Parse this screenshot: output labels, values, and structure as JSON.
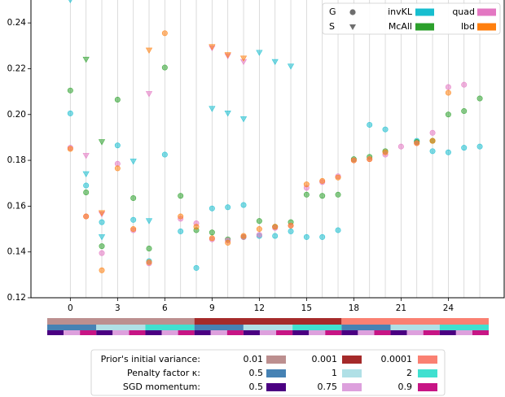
{
  "chart_data": {
    "type": "scatter",
    "title": "",
    "xlabel": "",
    "ylabel": "",
    "xlim": [
      -2.5,
      27.6
    ],
    "ylim": [
      0.12,
      0.25
    ],
    "x_ticks": [
      0,
      3,
      6,
      9,
      12,
      15,
      18,
      21,
      24
    ],
    "y_ticks": [
      0.12,
      0.14,
      0.16,
      0.18,
      0.2,
      0.22,
      0.24
    ],
    "grid": "vertical",
    "legend_position": "top-right",
    "marker_legend": [
      {
        "label": "G",
        "marker": "circle"
      },
      {
        "label": "S",
        "marker": "triangle-down"
      }
    ],
    "method_legend": [
      {
        "label": "invKL",
        "color": "#17becf"
      },
      {
        "label": "McAll",
        "color": "#2ca02c"
      },
      {
        "label": "quad",
        "color": "#e377c2"
      },
      {
        "label": "lbd",
        "color": "#ff7f0e"
      }
    ],
    "series": [
      {
        "name": "invKL",
        "marker": "G",
        "color": "#17becf",
        "points": [
          [
            0,
            0.2005
          ],
          [
            1,
            0.169
          ],
          [
            2,
            0.153
          ],
          [
            3,
            0.1865
          ],
          [
            4,
            0.154
          ],
          [
            5,
            0.136
          ],
          [
            6,
            0.1825
          ],
          [
            7,
            0.149
          ],
          [
            8,
            0.133
          ],
          [
            9,
            0.159
          ],
          [
            10,
            0.1595
          ],
          [
            11,
            0.1605
          ],
          [
            12,
            0.147
          ],
          [
            13,
            0.147
          ],
          [
            14,
            0.149
          ],
          [
            15,
            0.1465
          ],
          [
            16,
            0.1465
          ],
          [
            17,
            0.1495
          ],
          [
            19,
            0.1955
          ],
          [
            20,
            0.1935
          ],
          [
            22,
            0.1885
          ],
          [
            23,
            0.184
          ],
          [
            24,
            0.1835
          ],
          [
            25,
            0.1855
          ],
          [
            26,
            0.186
          ]
        ]
      },
      {
        "name": "McAll",
        "marker": "G",
        "color": "#2ca02c",
        "points": [
          [
            0,
            0.2105
          ],
          [
            1,
            0.166
          ],
          [
            2,
            0.1425
          ],
          [
            3,
            0.2065
          ],
          [
            4,
            0.1635
          ],
          [
            5,
            0.1415
          ],
          [
            6,
            0.2205
          ],
          [
            7,
            0.1645
          ],
          [
            8,
            0.1495
          ],
          [
            9,
            0.1485
          ],
          [
            10,
            0.1455
          ],
          [
            11,
            0.1465
          ],
          [
            12,
            0.1535
          ],
          [
            13,
            0.151
          ],
          [
            14,
            0.153
          ],
          [
            15,
            0.165
          ],
          [
            16,
            0.1645
          ],
          [
            17,
            0.165
          ],
          [
            18,
            0.1805
          ],
          [
            19,
            0.1815
          ],
          [
            20,
            0.184
          ],
          [
            22,
            0.188
          ],
          [
            23,
            0.1885
          ],
          [
            24,
            0.2
          ],
          [
            25,
            0.2015
          ],
          [
            26,
            0.207
          ]
        ]
      },
      {
        "name": "quad",
        "marker": "G",
        "color": "#e377c2",
        "points": [
          [
            0,
            0.1855
          ],
          [
            1,
            0.1555
          ],
          [
            2,
            0.1395
          ],
          [
            3,
            0.1785
          ],
          [
            4,
            0.1495
          ],
          [
            5,
            0.135
          ],
          [
            7,
            0.1545
          ],
          [
            8,
            0.1525
          ],
          [
            9,
            0.1455
          ],
          [
            10,
            0.145
          ],
          [
            11,
            0.1465
          ],
          [
            12,
            0.1475
          ],
          [
            13,
            0.1505
          ],
          [
            14,
            0.1515
          ],
          [
            15,
            0.168
          ],
          [
            16,
            0.1705
          ],
          [
            17,
            0.173
          ],
          [
            18,
            0.18
          ],
          [
            19,
            0.1805
          ],
          [
            20,
            0.1825
          ],
          [
            21,
            0.186
          ],
          [
            22,
            0.1875
          ],
          [
            23,
            0.192
          ],
          [
            24,
            0.212
          ],
          [
            25,
            0.213
          ]
        ]
      },
      {
        "name": "lbd",
        "marker": "G",
        "color": "#ff7f0e",
        "points": [
          [
            0,
            0.185
          ],
          [
            1,
            0.1555
          ],
          [
            2,
            0.132
          ],
          [
            3,
            0.1765
          ],
          [
            4,
            0.15
          ],
          [
            5,
            0.1355
          ],
          [
            6,
            0.2355
          ],
          [
            7,
            0.1555
          ],
          [
            8,
            0.151
          ],
          [
            9,
            0.146
          ],
          [
            10,
            0.144
          ],
          [
            11,
            0.147
          ],
          [
            12,
            0.15
          ],
          [
            13,
            0.151
          ],
          [
            14,
            0.1515
          ],
          [
            15,
            0.1695
          ],
          [
            16,
            0.171
          ],
          [
            17,
            0.1725
          ],
          [
            18,
            0.18
          ],
          [
            19,
            0.1805
          ],
          [
            20,
            0.1835
          ],
          [
            22,
            0.1875
          ],
          [
            23,
            0.1885
          ],
          [
            24,
            0.2095
          ]
        ]
      },
      {
        "name": "invKL",
        "marker": "S",
        "color": "#17becf",
        "points": [
          [
            0,
            0.25
          ],
          [
            1,
            0.174
          ],
          [
            2,
            0.1465
          ],
          [
            4,
            0.1795
          ],
          [
            5,
            0.1535
          ],
          [
            9,
            0.2025
          ],
          [
            10,
            0.2005
          ],
          [
            11,
            0.198
          ],
          [
            12,
            0.227
          ],
          [
            13,
            0.223
          ],
          [
            14,
            0.221
          ]
        ]
      },
      {
        "name": "McAll",
        "marker": "S",
        "color": "#2ca02c",
        "points": [
          [
            1,
            0.224
          ],
          [
            2,
            0.188
          ]
        ]
      },
      {
        "name": "quad",
        "marker": "S",
        "color": "#e377c2",
        "points": [
          [
            1,
            0.182
          ],
          [
            2,
            0.1565
          ],
          [
            5,
            0.209
          ],
          [
            9,
            0.229
          ],
          [
            10,
            0.2255
          ],
          [
            11,
            0.223
          ]
        ]
      },
      {
        "name": "lbd",
        "marker": "S",
        "color": "#ff7f0e",
        "points": [
          [
            2,
            0.157
          ],
          [
            5,
            0.228
          ],
          [
            9,
            0.2295
          ],
          [
            10,
            0.226
          ],
          [
            11,
            0.2245
          ]
        ]
      }
    ],
    "config_bars": {
      "x_range": [
        -0.5,
        26.5
      ],
      "rows": [
        {
          "label": "Prior's initial variance:",
          "segments": [
            [
              -0.5,
              8.5,
              "#bc8f8f"
            ],
            [
              8.5,
              17.5,
              "#a52a2a"
            ],
            [
              17.5,
              26.5,
              "#fa8072"
            ]
          ]
        },
        {
          "label": "Penalty factor κ:",
          "segments": [
            [
              -0.5,
              2.5,
              "#4682b4"
            ],
            [
              2.5,
              5.5,
              "#b0e0e6"
            ],
            [
              5.5,
              8.5,
              "#40e0d0"
            ],
            [
              8.5,
              11.5,
              "#4682b4"
            ],
            [
              11.5,
              14.5,
              "#b0e0e6"
            ],
            [
              14.5,
              17.5,
              "#40e0d0"
            ],
            [
              17.5,
              20.5,
              "#4682b4"
            ],
            [
              20.5,
              23.5,
              "#b0e0e6"
            ],
            [
              23.5,
              26.5,
              "#40e0d0"
            ]
          ]
        },
        {
          "label": "SGD momentum:",
          "segments": [
            [
              -0.5,
              0.5,
              "#4b0082"
            ],
            [
              0.5,
              1.5,
              "#dda0dd"
            ],
            [
              1.5,
              2.5,
              "#c71585"
            ],
            [
              2.5,
              3.5,
              "#4b0082"
            ],
            [
              3.5,
              4.5,
              "#dda0dd"
            ],
            [
              4.5,
              5.5,
              "#c71585"
            ],
            [
              5.5,
              6.5,
              "#4b0082"
            ],
            [
              6.5,
              7.5,
              "#dda0dd"
            ],
            [
              7.5,
              8.5,
              "#c71585"
            ],
            [
              8.5,
              9.5,
              "#4b0082"
            ],
            [
              9.5,
              10.5,
              "#dda0dd"
            ],
            [
              10.5,
              11.5,
              "#c71585"
            ],
            [
              11.5,
              12.5,
              "#4b0082"
            ],
            [
              12.5,
              13.5,
              "#dda0dd"
            ],
            [
              13.5,
              14.5,
              "#c71585"
            ],
            [
              14.5,
              15.5,
              "#4b0082"
            ],
            [
              15.5,
              16.5,
              "#dda0dd"
            ],
            [
              16.5,
              17.5,
              "#c71585"
            ],
            [
              17.5,
              18.5,
              "#4b0082"
            ],
            [
              18.5,
              19.5,
              "#dda0dd"
            ],
            [
              19.5,
              20.5,
              "#c71585"
            ],
            [
              20.5,
              21.5,
              "#4b0082"
            ],
            [
              21.5,
              22.5,
              "#dda0dd"
            ],
            [
              22.5,
              23.5,
              "#c71585"
            ],
            [
              23.5,
              24.5,
              "#4b0082"
            ],
            [
              24.5,
              25.5,
              "#dda0dd"
            ],
            [
              25.5,
              26.5,
              "#c71585"
            ]
          ]
        }
      ]
    },
    "config_legend": [
      {
        "label": "Prior's initial variance:",
        "entries": [
          {
            "value": "0.01",
            "color": "#bc8f8f"
          },
          {
            "value": "0.001",
            "color": "#a52a2a"
          },
          {
            "value": "0.0001",
            "color": "#fa8072"
          }
        ]
      },
      {
        "label": "Penalty factor κ:",
        "entries": [
          {
            "value": "0.5",
            "color": "#4682b4"
          },
          {
            "value": "1",
            "color": "#b0e0e6"
          },
          {
            "value": "2",
            "color": "#40e0d0"
          }
        ]
      },
      {
        "label": "SGD momentum:",
        "entries": [
          {
            "value": "0.5",
            "color": "#4b0082"
          },
          {
            "value": "0.75",
            "color": "#dda0dd"
          },
          {
            "value": "0.9",
            "color": "#c71585"
          }
        ]
      }
    ]
  }
}
